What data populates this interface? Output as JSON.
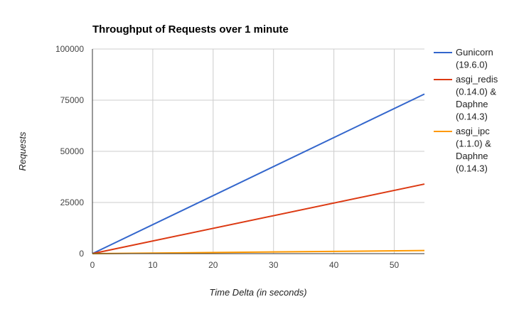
{
  "chart_data": {
    "type": "line",
    "title": "Throughput of Requests over 1 minute",
    "xlabel": "Time Delta (in seconds)",
    "ylabel": "Requests",
    "xlim": [
      0,
      55
    ],
    "ylim": [
      0,
      100000
    ],
    "xticks": [
      "0",
      "10",
      "20",
      "30",
      "40",
      "50"
    ],
    "yticks": [
      "0",
      "25000",
      "50000",
      "75000",
      "100000"
    ],
    "grid": true,
    "legend_position": "right",
    "x": [
      0,
      55
    ],
    "series": [
      {
        "name": "Gunicorn (19.6.0)",
        "legend_lines": [
          "Gunicorn",
          "(19.6.0)"
        ],
        "color": "#3366cc",
        "values": [
          0,
          78000
        ]
      },
      {
        "name": "asgi_redis (0.14.0) & Daphne (0.14.3)",
        "legend_lines": [
          "asgi_redis",
          "(0.14.0) &",
          "Daphne",
          "(0.14.3)"
        ],
        "color": "#dc3912",
        "values": [
          0,
          34000
        ]
      },
      {
        "name": "asgi_ipc (1.1.0) & Daphne (0.14.3)",
        "legend_lines": [
          "asgi_ipc",
          "(1.1.0) &",
          "Daphne",
          "(0.14.3)"
        ],
        "color": "#ff9900",
        "values": [
          0,
          1500
        ]
      }
    ]
  }
}
